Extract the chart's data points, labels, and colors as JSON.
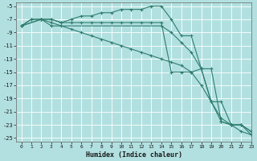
{
  "xlabel": "Humidex (Indice chaleur)",
  "background_color": "#b2e0e0",
  "grid_color": "#c8e8e8",
  "line_color": "#2e7d6e",
  "xlim": [
    -0.5,
    23
  ],
  "ylim": [
    -25.5,
    -4.5
  ],
  "yticks": [
    -25,
    -23,
    -21,
    -19,
    -17,
    -15,
    -13,
    -11,
    -9,
    -7,
    -5
  ],
  "xticks": [
    0,
    1,
    2,
    3,
    4,
    5,
    6,
    7,
    8,
    9,
    10,
    11,
    12,
    13,
    14,
    15,
    16,
    17,
    18,
    19,
    20,
    21,
    22,
    23
  ],
  "series": [
    {
      "x": [
        0,
        1,
        2,
        3,
        4,
        5,
        6,
        7,
        8,
        9,
        10,
        11,
        12,
        13,
        14,
        15,
        16,
        17,
        18,
        19,
        20,
        21,
        22,
        23
      ],
      "y": [
        -8,
        -7,
        -7,
        -7,
        -7.5,
        -7,
        -6.5,
        -6.5,
        -6,
        -6,
        -5.5,
        -5.5,
        -5.5,
        -5,
        -5,
        -7,
        -9.5,
        -9.5,
        -14.5,
        -19.5,
        -22.5,
        -23,
        -24,
        -24.5
      ]
    },
    {
      "x": [
        0,
        1,
        2,
        3,
        4,
        5,
        6,
        7,
        8,
        9,
        10,
        11,
        12,
        13,
        14,
        15,
        16,
        17,
        18,
        19,
        20,
        21,
        22,
        23
      ],
      "y": [
        -8,
        -7,
        -7,
        -7,
        -7.5,
        -7.5,
        -7.5,
        -7.5,
        -7.5,
        -7.5,
        -7.5,
        -7.5,
        -7.5,
        -7.5,
        -7.5,
        -15,
        -15,
        -15,
        -14.5,
        -14.5,
        -22.5,
        -23,
        -23,
        -24
      ]
    },
    {
      "x": [
        0,
        2,
        3,
        14,
        15,
        16,
        17,
        18,
        19,
        20,
        21,
        22,
        23
      ],
      "y": [
        -8,
        -7,
        -8,
        -8,
        -9,
        -10.5,
        -12,
        -14.5,
        -19.5,
        -19.5,
        -23,
        -23,
        -24.5
      ]
    },
    {
      "x": [
        0,
        2,
        3,
        4,
        5,
        6,
        7,
        8,
        9,
        10,
        11,
        12,
        13,
        14,
        15,
        16,
        17,
        18,
        19,
        20,
        21,
        22,
        23
      ],
      "y": [
        -8,
        -7,
        -7.5,
        -8,
        -8.5,
        -9,
        -9.5,
        -10,
        -10.5,
        -11,
        -11.5,
        -12,
        -12.5,
        -13,
        -13.5,
        -14,
        -15,
        -17,
        -19.5,
        -22,
        -23,
        -23,
        -24
      ]
    }
  ]
}
